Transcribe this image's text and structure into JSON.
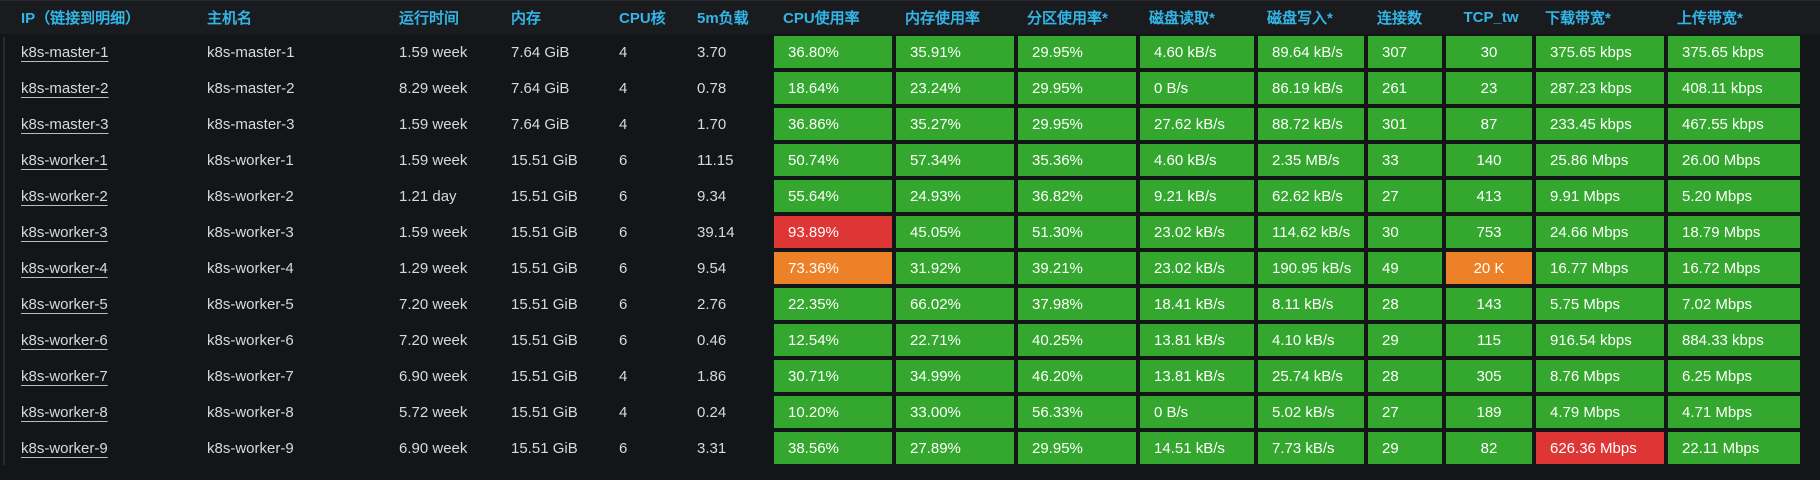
{
  "colors": {
    "green": "#34a72e",
    "orange": "#ed8128",
    "red": "#de3535",
    "header_blue": "#33b5e5"
  },
  "table": {
    "columns": [
      {
        "key": "ip",
        "label": "IP（链接到明细）"
      },
      {
        "key": "hostname",
        "label": "主机名"
      },
      {
        "key": "uptime",
        "label": "运行时间"
      },
      {
        "key": "memory",
        "label": "内存"
      },
      {
        "key": "cores",
        "label": "CPU核"
      },
      {
        "key": "load5m",
        "label": "5m负载"
      },
      {
        "key": "cpu_usage",
        "label": "CPU使用率",
        "colored": true
      },
      {
        "key": "mem_usage",
        "label": "内存使用率",
        "colored": true
      },
      {
        "key": "partition_usage",
        "label": "分区使用率*",
        "colored": true
      },
      {
        "key": "disk_read",
        "label": "磁盘读取*",
        "colored": true
      },
      {
        "key": "disk_write",
        "label": "磁盘写入*",
        "colored": true
      },
      {
        "key": "connections",
        "label": "连接数",
        "colored": true
      },
      {
        "key": "tcp_tw",
        "label": "TCP_tw",
        "colored": true,
        "align": "center"
      },
      {
        "key": "download_bw",
        "label": "下载带宽*",
        "colored": true
      },
      {
        "key": "upload_bw",
        "label": "上传带宽*",
        "colored": true
      }
    ],
    "rows": [
      {
        "ip": "k8s-master-1",
        "hostname": "k8s-master-1",
        "uptime": "1.59 week",
        "memory": "7.64 GiB",
        "cores": "4",
        "load5m": "3.70",
        "cpu_usage": "36.80%",
        "mem_usage": "35.91%",
        "partition_usage": "29.95%",
        "disk_read": "4.60 kB/s",
        "disk_write": "89.64 kB/s",
        "connections": "307",
        "tcp_tw": "30",
        "download_bw": "375.65 kbps",
        "upload_bw": "375.65 kbps",
        "cell_colors": {}
      },
      {
        "ip": "k8s-master-2",
        "hostname": "k8s-master-2",
        "uptime": "8.29 week",
        "memory": "7.64 GiB",
        "cores": "4",
        "load5m": "0.78",
        "cpu_usage": "18.64%",
        "mem_usage": "23.24%",
        "partition_usage": "29.95%",
        "disk_read": "0 B/s",
        "disk_write": "86.19 kB/s",
        "connections": "261",
        "tcp_tw": "23",
        "download_bw": "287.23 kbps",
        "upload_bw": "408.11 kbps",
        "cell_colors": {}
      },
      {
        "ip": "k8s-master-3",
        "hostname": "k8s-master-3",
        "uptime": "1.59 week",
        "memory": "7.64 GiB",
        "cores": "4",
        "load5m": "1.70",
        "cpu_usage": "36.86%",
        "mem_usage": "35.27%",
        "partition_usage": "29.95%",
        "disk_read": "27.62 kB/s",
        "disk_write": "88.72 kB/s",
        "connections": "301",
        "tcp_tw": "87",
        "download_bw": "233.45 kbps",
        "upload_bw": "467.55 kbps",
        "cell_colors": {}
      },
      {
        "ip": "k8s-worker-1",
        "hostname": "k8s-worker-1",
        "uptime": "1.59 week",
        "memory": "15.51 GiB",
        "cores": "6",
        "load5m": "11.15",
        "cpu_usage": "50.74%",
        "mem_usage": "57.34%",
        "partition_usage": "35.36%",
        "disk_read": "4.60 kB/s",
        "disk_write": "2.35 MB/s",
        "connections": "33",
        "tcp_tw": "140",
        "download_bw": "25.86 Mbps",
        "upload_bw": "26.00 Mbps",
        "cell_colors": {}
      },
      {
        "ip": "k8s-worker-2",
        "hostname": "k8s-worker-2",
        "uptime": "1.21 day",
        "memory": "15.51 GiB",
        "cores": "6",
        "load5m": "9.34",
        "cpu_usage": "55.64%",
        "mem_usage": "24.93%",
        "partition_usage": "36.82%",
        "disk_read": "9.21 kB/s",
        "disk_write": "62.62 kB/s",
        "connections": "27",
        "tcp_tw": "413",
        "download_bw": "9.91 Mbps",
        "upload_bw": "5.20 Mbps",
        "cell_colors": {}
      },
      {
        "ip": "k8s-worker-3",
        "hostname": "k8s-worker-3",
        "uptime": "1.59 week",
        "memory": "15.51 GiB",
        "cores": "6",
        "load5m": "39.14",
        "cpu_usage": "93.89%",
        "mem_usage": "45.05%",
        "partition_usage": "51.30%",
        "disk_read": "23.02 kB/s",
        "disk_write": "114.62 kB/s",
        "connections": "30",
        "tcp_tw": "753",
        "download_bw": "24.66 Mbps",
        "upload_bw": "18.79 Mbps",
        "cell_colors": {
          "cpu_usage": "red"
        }
      },
      {
        "ip": "k8s-worker-4",
        "hostname": "k8s-worker-4",
        "uptime": "1.29 week",
        "memory": "15.51 GiB",
        "cores": "6",
        "load5m": "9.54",
        "cpu_usage": "73.36%",
        "mem_usage": "31.92%",
        "partition_usage": "39.21%",
        "disk_read": "23.02 kB/s",
        "disk_write": "190.95 kB/s",
        "connections": "49",
        "tcp_tw": "20 K",
        "download_bw": "16.77 Mbps",
        "upload_bw": "16.72 Mbps",
        "cell_colors": {
          "cpu_usage": "orange",
          "tcp_tw": "orange"
        }
      },
      {
        "ip": "k8s-worker-5",
        "hostname": "k8s-worker-5",
        "uptime": "7.20 week",
        "memory": "15.51 GiB",
        "cores": "6",
        "load5m": "2.76",
        "cpu_usage": "22.35%",
        "mem_usage": "66.02%",
        "partition_usage": "37.98%",
        "disk_read": "18.41 kB/s",
        "disk_write": "8.11 kB/s",
        "connections": "28",
        "tcp_tw": "143",
        "download_bw": "5.75 Mbps",
        "upload_bw": "7.02 Mbps",
        "cell_colors": {}
      },
      {
        "ip": "k8s-worker-6",
        "hostname": "k8s-worker-6",
        "uptime": "7.20 week",
        "memory": "15.51 GiB",
        "cores": "6",
        "load5m": "0.46",
        "cpu_usage": "12.54%",
        "mem_usage": "22.71%",
        "partition_usage": "40.25%",
        "disk_read": "13.81 kB/s",
        "disk_write": "4.10 kB/s",
        "connections": "29",
        "tcp_tw": "115",
        "download_bw": "916.54 kbps",
        "upload_bw": "884.33 kbps",
        "cell_colors": {}
      },
      {
        "ip": "k8s-worker-7",
        "hostname": "k8s-worker-7",
        "uptime": "6.90 week",
        "memory": "15.51 GiB",
        "cores": "4",
        "load5m": "1.86",
        "cpu_usage": "30.71%",
        "mem_usage": "34.99%",
        "partition_usage": "46.20%",
        "disk_read": "13.81 kB/s",
        "disk_write": "25.74 kB/s",
        "connections": "28",
        "tcp_tw": "305",
        "download_bw": "8.76 Mbps",
        "upload_bw": "6.25 Mbps",
        "cell_colors": {}
      },
      {
        "ip": "k8s-worker-8",
        "hostname": "k8s-worker-8",
        "uptime": "5.72 week",
        "memory": "15.51 GiB",
        "cores": "4",
        "load5m": "0.24",
        "cpu_usage": "10.20%",
        "mem_usage": "33.00%",
        "partition_usage": "56.33%",
        "disk_read": "0 B/s",
        "disk_write": "5.02 kB/s",
        "connections": "27",
        "tcp_tw": "189",
        "download_bw": "4.79 Mbps",
        "upload_bw": "4.71 Mbps",
        "cell_colors": {}
      },
      {
        "ip": "k8s-worker-9",
        "hostname": "k8s-worker-9",
        "uptime": "6.90 week",
        "memory": "15.51 GiB",
        "cores": "6",
        "load5m": "3.31",
        "cpu_usage": "38.56%",
        "mem_usage": "27.89%",
        "partition_usage": "29.95%",
        "disk_read": "14.51 kB/s",
        "disk_write": "7.73 kB/s",
        "connections": "29",
        "tcp_tw": "82",
        "download_bw": "626.36 Mbps",
        "upload_bw": "22.11 Mbps",
        "cell_colors": {
          "download_bw": "red"
        }
      }
    ]
  }
}
